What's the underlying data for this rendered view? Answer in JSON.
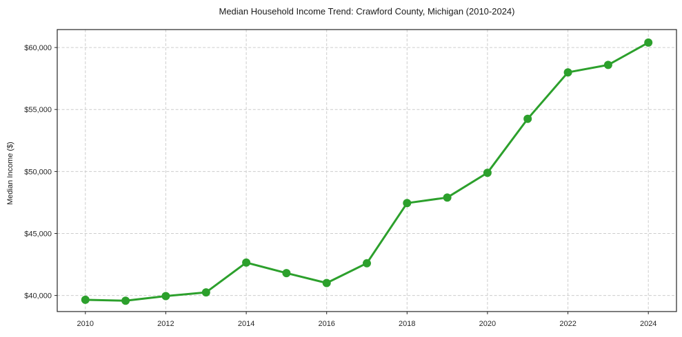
{
  "chart_data": {
    "type": "line",
    "title": "Median Household Income Trend: Crawford County, Michigan (2010-2024)",
    "xlabel": "",
    "ylabel": "Median Income ($)",
    "series_name": "Median household income",
    "x": [
      2010,
      2011,
      2012,
      2013,
      2014,
      2015,
      2016,
      2017,
      2018,
      2019,
      2020,
      2021,
      2022,
      2023,
      2024
    ],
    "values": [
      39650,
      39570,
      39950,
      40250,
      42650,
      41800,
      41000,
      42600,
      47450,
      47900,
      49900,
      54250,
      58000,
      58600,
      60400
    ],
    "xlim": [
      2009.3,
      2024.7
    ],
    "ylim": [
      38700,
      61450
    ],
    "xticks": [
      2010,
      2012,
      2014,
      2016,
      2018,
      2020,
      2022,
      2024
    ],
    "xtick_labels": [
      "2010",
      "2012",
      "2014",
      "2016",
      "2018",
      "2020",
      "2022",
      "2024"
    ],
    "yticks": [
      40000,
      45000,
      50000,
      55000,
      60000
    ],
    "ytick_labels": [
      "$40,000",
      "$45,000",
      "$50,000",
      "$55,000",
      "$60,000"
    ],
    "grid": true,
    "grid_style": "dashed",
    "legend": false,
    "line_color": "#2ca02c",
    "background_color": "#ffffff",
    "marker": "circle"
  }
}
